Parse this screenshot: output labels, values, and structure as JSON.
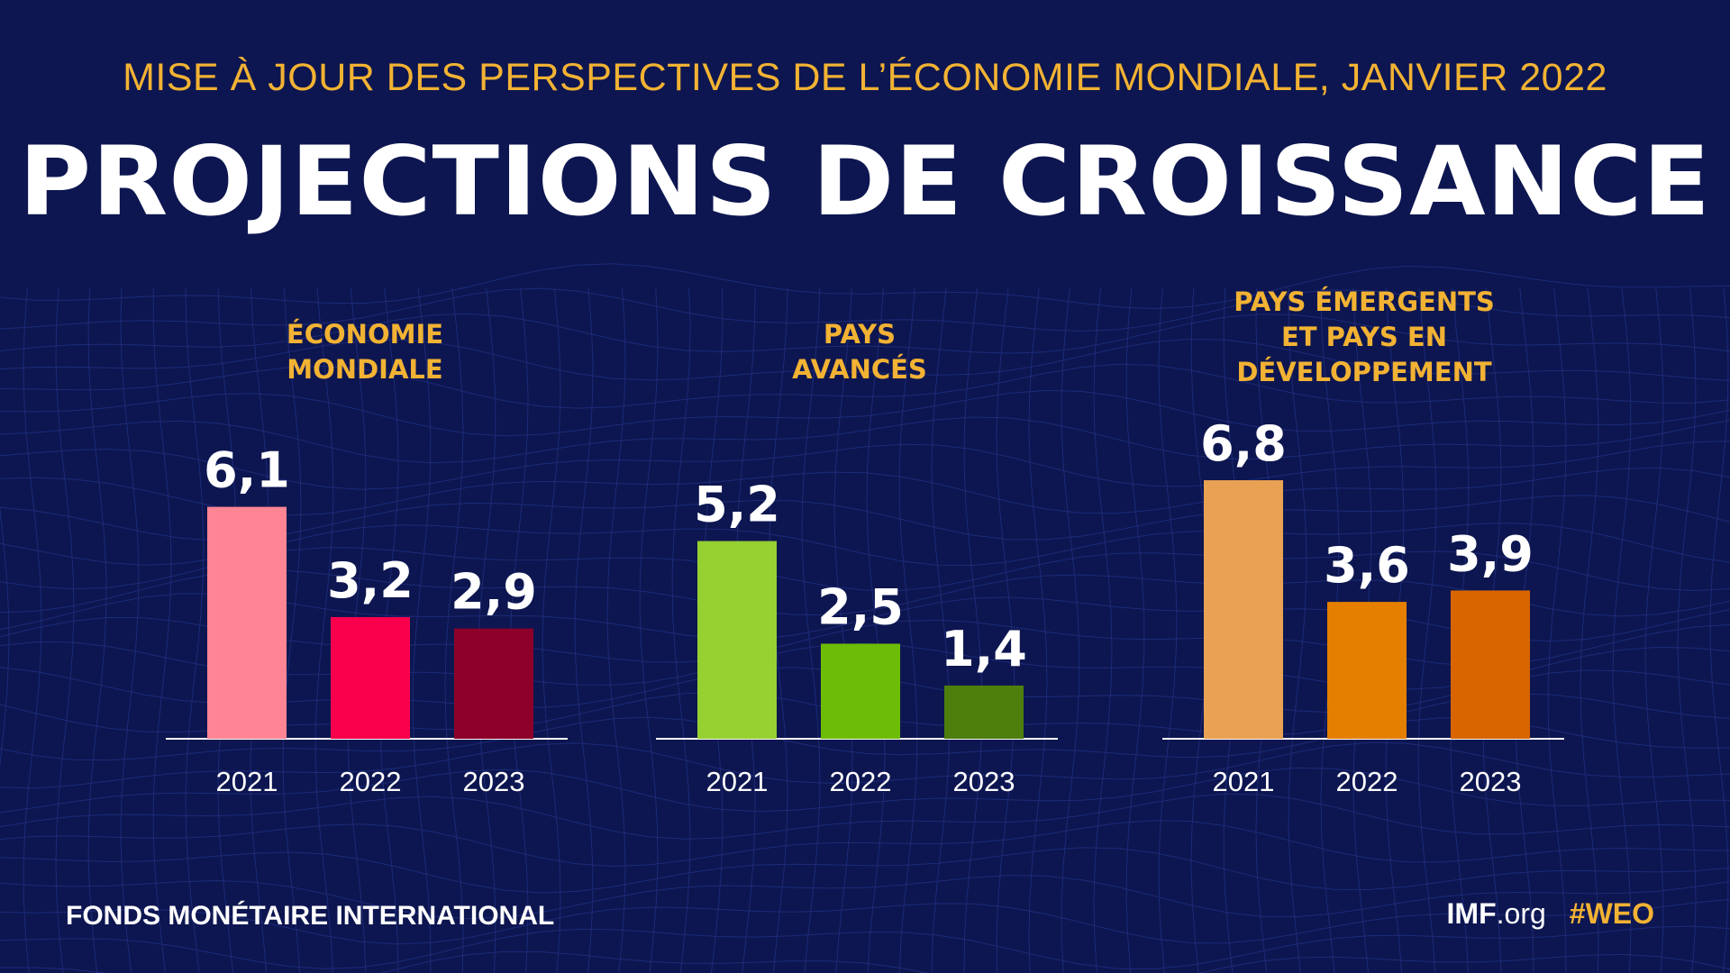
{
  "header": {
    "subtitle": "MISE À JOUR DES PERSPECTIVES DE L’ÉCONOMIE MONDIALE, JANVIER 2022",
    "title": "PROJECTIONS DE CROISSANCE"
  },
  "chart_data": [
    {
      "type": "bar",
      "title": "ÉCONOMIE MONDIALE",
      "categories": [
        "2021",
        "2022",
        "2023"
      ],
      "values": [
        6.1,
        3.2,
        2.9
      ],
      "value_labels": [
        "6,1",
        "3,2",
        "2,9"
      ],
      "colors": [
        "#ff8595",
        "#fa004c",
        "#8c0029"
      ],
      "ylim": [
        0,
        7.5
      ]
    },
    {
      "type": "bar",
      "title": "PAYS AVANCÉS",
      "categories": [
        "2021",
        "2022",
        "2023"
      ],
      "values": [
        5.2,
        2.5,
        1.4
      ],
      "value_labels": [
        "5,2",
        "2,5",
        "1,4"
      ],
      "colors": [
        "#96d031",
        "#6dbc06",
        "#4e7f0c"
      ],
      "ylim": [
        0,
        7.5
      ]
    },
    {
      "type": "bar",
      "title": "PAYS ÉMERGENTS ET PAYS EN DÉVELOPPEMENT",
      "categories": [
        "2021",
        "2022",
        "2023"
      ],
      "values": [
        6.8,
        3.6,
        3.9
      ],
      "value_labels": [
        "6,8",
        "3,6",
        "3,9"
      ],
      "colors": [
        "#e9a253",
        "#e47f00",
        "#d86500"
      ],
      "ylim": [
        0,
        7.5
      ]
    }
  ],
  "panel_titles": [
    [
      "ÉCONOMIE",
      "MONDIALE"
    ],
    [
      "PAYS",
      "AVANCÉS"
    ],
    [
      "PAYS ÉMERGENTS",
      "ET PAYS EN",
      "DÉVELOPPEMENT"
    ]
  ],
  "footer": {
    "org": "FONDS MONÉTAIRE INTERNATIONAL",
    "site_bold": "IMF",
    "site_rest": ".org",
    "hashtag": "#WEO"
  },
  "colors": {
    "background": "#0d1650",
    "accent": "#f2b233",
    "text": "#ffffff"
  }
}
